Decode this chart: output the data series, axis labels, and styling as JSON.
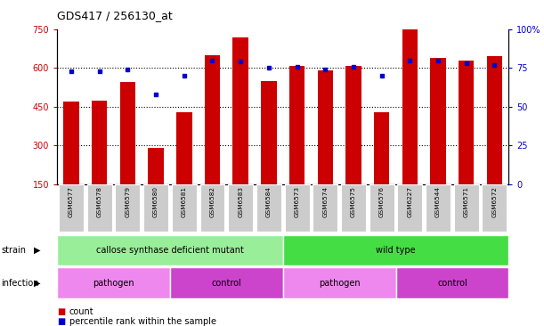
{
  "title": "GDS417 / 256130_at",
  "samples": [
    "GSM6577",
    "GSM6578",
    "GSM6579",
    "GSM6580",
    "GSM6581",
    "GSM6582",
    "GSM6583",
    "GSM6584",
    "GSM6573",
    "GSM6574",
    "GSM6575",
    "GSM6576",
    "GSM6227",
    "GSM6544",
    "GSM6571",
    "GSM6572"
  ],
  "counts": [
    470,
    475,
    545,
    290,
    430,
    650,
    720,
    550,
    610,
    590,
    610,
    430,
    750,
    640,
    630,
    645
  ],
  "percentiles": [
    73,
    73,
    74,
    58,
    70,
    80,
    79,
    75,
    76,
    74,
    76,
    70,
    80,
    80,
    78,
    77
  ],
  "ylim_left": [
    150,
    750
  ],
  "ylim_right": [
    0,
    100
  ],
  "yticks_left": [
    150,
    300,
    450,
    600,
    750
  ],
  "yticks_right": [
    0,
    25,
    50,
    75,
    100
  ],
  "bar_color": "#cc0000",
  "dot_color": "#0000cc",
  "strain_groups": [
    {
      "label": "callose synthase deficient mutant",
      "start": 0,
      "end": 8,
      "color": "#99ee99"
    },
    {
      "label": "wild type",
      "start": 8,
      "end": 16,
      "color": "#44dd44"
    }
  ],
  "infection_groups": [
    {
      "label": "pathogen",
      "start": 0,
      "end": 4,
      "color": "#ee88ee"
    },
    {
      "label": "control",
      "start": 4,
      "end": 8,
      "color": "#cc44cc"
    },
    {
      "label": "pathogen",
      "start": 8,
      "end": 12,
      "color": "#ee88ee"
    },
    {
      "label": "control",
      "start": 12,
      "end": 16,
      "color": "#cc44cc"
    }
  ],
  "legend_count_label": "count",
  "legend_percentile_label": "percentile rank within the sample",
  "strain_label": "strain",
  "infection_label": "infection",
  "tick_label_bg": "#cccccc",
  "left_axis_color": "#cc0000",
  "right_axis_color": "#0000cc"
}
